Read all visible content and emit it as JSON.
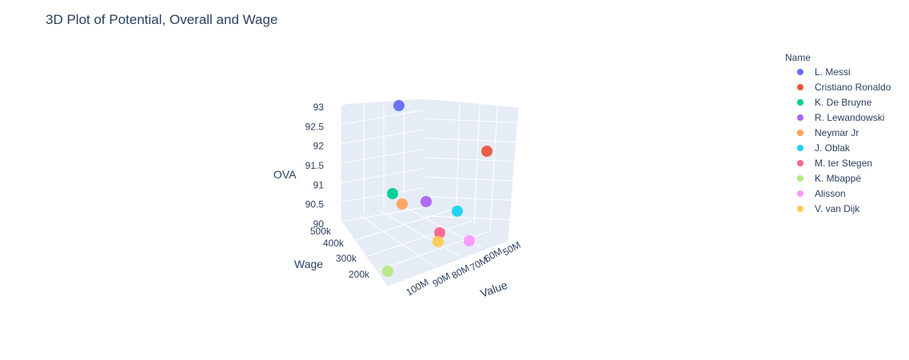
{
  "chart_data": {
    "type": "scatter3d",
    "title": "3D Plot of Potential, Overall and Wage",
    "x_axis": {
      "label": "Value",
      "ticks": [
        "50M",
        "60M",
        "70M",
        "80M",
        "90M",
        "100M"
      ]
    },
    "y_axis": {
      "label": "Wage",
      "ticks": [
        "200k",
        "300k",
        "400k",
        "500k"
      ]
    },
    "z_axis": {
      "label": "OVA",
      "ticks": [
        "90",
        "90.5",
        "91",
        "91.5",
        "92",
        "92.5",
        "93"
      ]
    },
    "legend_title": "Name",
    "legend_position": "right",
    "series": [
      {
        "name": "L. Messi",
        "color": "#636efa",
        "value": 67.5,
        "wage": 560,
        "ova": 93
      },
      {
        "name": "Cristiano Ronaldo",
        "color": "#ef553b",
        "value": 46,
        "wage": 220,
        "ova": 92
      },
      {
        "name": "K. De Bruyne",
        "color": "#00cc96",
        "value": 87,
        "wage": 370,
        "ova": 91
      },
      {
        "name": "R. Lewandowski",
        "color": "#ab63fa",
        "value": 80,
        "wage": 240,
        "ova": 91
      },
      {
        "name": "Neymar Jr",
        "color": "#ffa15a",
        "value": 90,
        "wage": 270,
        "ova": 91
      },
      {
        "name": "J. Oblak",
        "color": "#19d3f3",
        "value": 75.5,
        "wage": 125,
        "ova": 91
      },
      {
        "name": "M. ter Stegen",
        "color": "#ff6692",
        "value": 72.5,
        "wage": 260,
        "ova": 90
      },
      {
        "name": "K. Mbappé",
        "color": "#b6e880",
        "value": 105.5,
        "wage": 160,
        "ova": 90
      },
      {
        "name": "Alisson",
        "color": "#ff97ff",
        "value": 62,
        "wage": 160,
        "ova": 90
      },
      {
        "name": "V. van Dijk",
        "color": "#fecb52",
        "value": 75.5,
        "wage": 210,
        "ova": 90
      }
    ]
  }
}
